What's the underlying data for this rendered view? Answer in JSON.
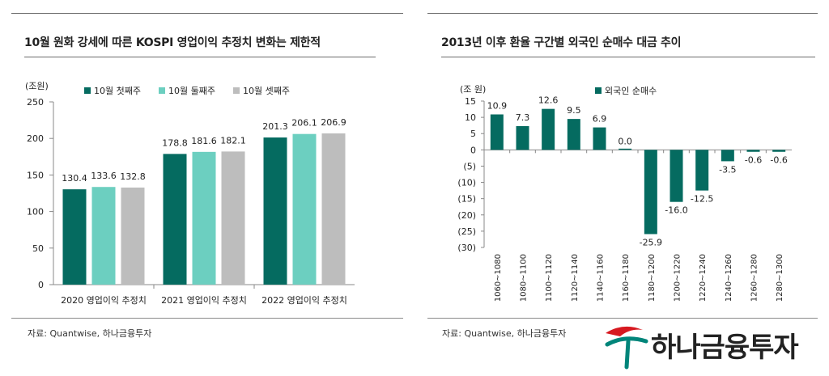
{
  "left_panel": {
    "title": "10월 원화 강세에 따른 KOSPI 영업이익 추정치 변화는 제한적",
    "source": "자료: Quantwise, 하나금융투자"
  },
  "right_panel": {
    "title": "2013년 이후 환율 구간별 외국인 순매수 대금 추이",
    "source": "자료: Quantwise, 하나금융투자"
  },
  "logo": {
    "text": "하나금융투자"
  },
  "colors": {
    "dark_teal": "#056b60",
    "light_teal": "#6ccfc0",
    "gray": "#bdbdbd",
    "axis": "#888888"
  },
  "chart_data": [
    {
      "type": "bar",
      "unit_label": "(조원)",
      "categories": [
        "2020 영업이익 추정치",
        "2021 영업이익 추정치",
        "2022 영업이익 추정치"
      ],
      "series": [
        {
          "name": "10월 첫째주",
          "values": [
            130.4,
            178.8,
            201.3
          ],
          "labels": [
            "130.4",
            "178.8",
            "201.3"
          ]
        },
        {
          "name": "10월 둘째주",
          "values": [
            133.6,
            181.6,
            206.1
          ],
          "labels": [
            "133.6",
            "181.6",
            "206.1"
          ]
        },
        {
          "name": "10월 셋째주",
          "values": [
            132.8,
            182.1,
            206.9
          ],
          "labels": [
            "132.8",
            "182.1",
            "206.9"
          ]
        }
      ],
      "yticks": [
        0,
        50,
        100,
        150,
        200,
        250
      ],
      "ytick_labels": [
        "0",
        "50",
        "100",
        "150",
        "200",
        "250"
      ],
      "ylim": [
        0,
        250
      ],
      "legend_position": "top-left"
    },
    {
      "type": "bar",
      "unit_label": "(조 원)",
      "categories": [
        "1060~1080",
        "1080~1100",
        "1100~1120",
        "1120~1140",
        "1140~1160",
        "1160~1180",
        "1180~1200",
        "1200~1220",
        "1220~1240",
        "1240~1260",
        "1260~1280",
        "1280~1300"
      ],
      "series": [
        {
          "name": "외국인 순매수",
          "values": [
            10.9,
            7.3,
            12.6,
            9.5,
            6.9,
            0.0,
            -25.9,
            -16.0,
            -12.5,
            -3.5,
            -0.6,
            -0.6
          ],
          "labels": [
            "10.9",
            "7.3",
            "12.6",
            "9.5",
            "6.9",
            "0.0",
            "-25.9",
            "-16.0",
            "-12.5",
            "-3.5",
            "-0.6",
            "-0.6"
          ]
        }
      ],
      "yticks": [
        15,
        10,
        5,
        0,
        -5,
        -10,
        -15,
        -20,
        -25,
        -30
      ],
      "ytick_labels": [
        "15",
        "10",
        "5",
        "0",
        "(5)",
        "(10)",
        "(15)",
        "(20)",
        "(25)",
        "(30)"
      ],
      "ylim": [
        -30,
        15
      ],
      "legend_position": "top-left"
    }
  ]
}
